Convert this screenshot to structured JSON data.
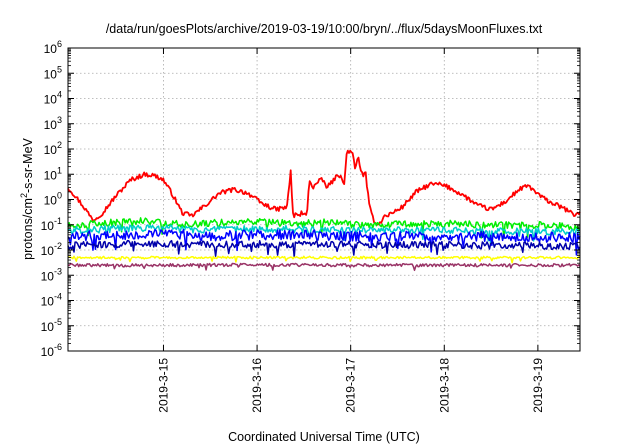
{
  "chart_data": {
    "type": "line",
    "title": "/data/run/goesPlots/archive/2019-03-19/10:00/bryn/../flux/5daysMoonFluxes.txt",
    "xlabel": "Coordinated Universal Time (UTC)",
    "ylabel": {
      "base": "protons/cm",
      "sup": "2",
      "rest": "-s-sr-MeV"
    },
    "y_scale": "log",
    "ylim_exp": [
      -6,
      6
    ],
    "y_ticks": [
      {
        "exp": -6,
        "base": "10",
        "sup": "-6"
      },
      {
        "exp": -5,
        "base": "10",
        "sup": "-5"
      },
      {
        "exp": -4,
        "base": "10",
        "sup": "-4"
      },
      {
        "exp": -3,
        "base": "10",
        "sup": "-3"
      },
      {
        "exp": -2,
        "base": "10",
        "sup": "-2"
      },
      {
        "exp": -1,
        "base": "10",
        "sup": "-1"
      },
      {
        "exp": 0,
        "base": "10",
        "sup": "0"
      },
      {
        "exp": 1,
        "base": "10",
        "sup": "1"
      },
      {
        "exp": 2,
        "base": "10",
        "sup": "2"
      },
      {
        "exp": 3,
        "base": "10",
        "sup": "3"
      },
      {
        "exp": 4,
        "base": "10",
        "sup": "4"
      },
      {
        "exp": 5,
        "base": "10",
        "sup": "5"
      },
      {
        "exp": 6,
        "base": "10",
        "sup": "6"
      }
    ],
    "xlim_days": [
      13.98,
      19.45
    ],
    "x_ticks": [
      {
        "day": 15,
        "label": "2019-3-15"
      },
      {
        "day": 16,
        "label": "2019-3-16"
      },
      {
        "day": 17,
        "label": "2019-3-17"
      },
      {
        "day": 18,
        "label": "2019-3-18"
      },
      {
        "day": 19,
        "label": "2019-3-19"
      }
    ],
    "grid": true,
    "series": [
      {
        "color": "#ff0000",
        "noise": 0.09,
        "x": [
          13.98,
          14.05,
          14.15,
          14.25,
          14.35,
          14.5,
          14.65,
          14.8,
          14.9,
          15.0,
          15.1,
          15.2,
          15.3,
          15.45,
          15.6,
          15.75,
          15.9,
          16.05,
          16.2,
          16.32,
          16.36,
          16.38,
          16.4,
          16.42,
          16.44,
          16.47,
          16.5,
          16.53,
          16.56,
          16.6,
          16.65,
          16.7,
          16.75,
          16.8,
          16.85,
          16.9,
          16.93,
          16.96,
          16.99,
          17.02,
          17.05,
          17.08,
          17.12,
          17.16,
          17.2,
          17.25,
          17.3,
          17.35,
          17.45,
          17.55,
          17.7,
          17.85,
          17.95,
          18.05,
          18.2,
          18.35,
          18.5,
          18.65,
          18.8,
          18.9,
          19.0,
          19.1,
          19.2,
          19.3,
          19.38,
          19.45
        ],
        "y": [
          3,
          1.5,
          0.5,
          0.15,
          0.3,
          1.5,
          6,
          10,
          9,
          6,
          1.5,
          0.3,
          0.22,
          0.6,
          1.8,
          2.5,
          1.8,
          0.7,
          0.4,
          0.5,
          15,
          0.3,
          0.2,
          0.3,
          0.2,
          0.3,
          0.25,
          0.22,
          6,
          3,
          5,
          6,
          3,
          5,
          8,
          10,
          3,
          90,
          80,
          60,
          15,
          50,
          10,
          10,
          0.5,
          0.15,
          0.1,
          0.2,
          0.3,
          0.5,
          2,
          4,
          4,
          3,
          1.5,
          0.6,
          0.4,
          0.8,
          2.5,
          3.5,
          1.6,
          0.9,
          0.6,
          0.4,
          0.25,
          0.3
        ]
      },
      {
        "color": "#00ee00",
        "noise": 0.14,
        "x": [
          13.98,
          14.3,
          14.8,
          15.2,
          15.5,
          16.0,
          16.4,
          16.8,
          17.0,
          17.5,
          18.0,
          18.5,
          19.0,
          19.45
        ],
        "y": [
          0.09,
          0.11,
          0.15,
          0.1,
          0.12,
          0.13,
          0.11,
          0.13,
          0.1,
          0.11,
          0.11,
          0.1,
          0.1,
          0.08
        ]
      },
      {
        "color": "#00cccc",
        "noise": 0.14,
        "x": [
          13.98,
          14.5,
          15.0,
          15.5,
          16.0,
          16.5,
          17.0,
          17.5,
          18.0,
          18.5,
          19.0,
          19.45
        ],
        "y": [
          0.06,
          0.07,
          0.075,
          0.06,
          0.07,
          0.065,
          0.06,
          0.06,
          0.06,
          0.055,
          0.055,
          0.05
        ]
      },
      {
        "color": "#0000ff",
        "noise": 0.2,
        "x": [
          13.98,
          14.5,
          15.0,
          15.5,
          16.0,
          16.5,
          17.0,
          17.5,
          18.0,
          18.5,
          19.0,
          19.45
        ],
        "y": [
          0.035,
          0.04,
          0.045,
          0.035,
          0.04,
          0.04,
          0.035,
          0.035,
          0.035,
          0.035,
          0.033,
          0.03
        ]
      },
      {
        "color": "#0000aa",
        "noise": 0.14,
        "x": [
          13.98,
          14.5,
          15.0,
          15.5,
          16.0,
          16.5,
          17.0,
          17.5,
          18.0,
          18.5,
          19.0,
          19.45
        ],
        "y": [
          0.015,
          0.017,
          0.018,
          0.016,
          0.017,
          0.017,
          0.016,
          0.016,
          0.016,
          0.015,
          0.015,
          0.014
        ]
      },
      {
        "color": "#ffff00",
        "noise": 0.05,
        "x": [
          13.98,
          15.0,
          16.0,
          17.0,
          18.0,
          19.0,
          19.45
        ],
        "y": [
          0.005,
          0.005,
          0.005,
          0.005,
          0.005,
          0.005,
          0.005
        ]
      },
      {
        "color": "#993366",
        "noise": 0.06,
        "x": [
          13.98,
          15.0,
          16.0,
          17.0,
          18.0,
          19.0,
          19.45
        ],
        "y": [
          0.0025,
          0.0025,
          0.0026,
          0.0025,
          0.0025,
          0.0025,
          0.0025
        ]
      }
    ]
  }
}
